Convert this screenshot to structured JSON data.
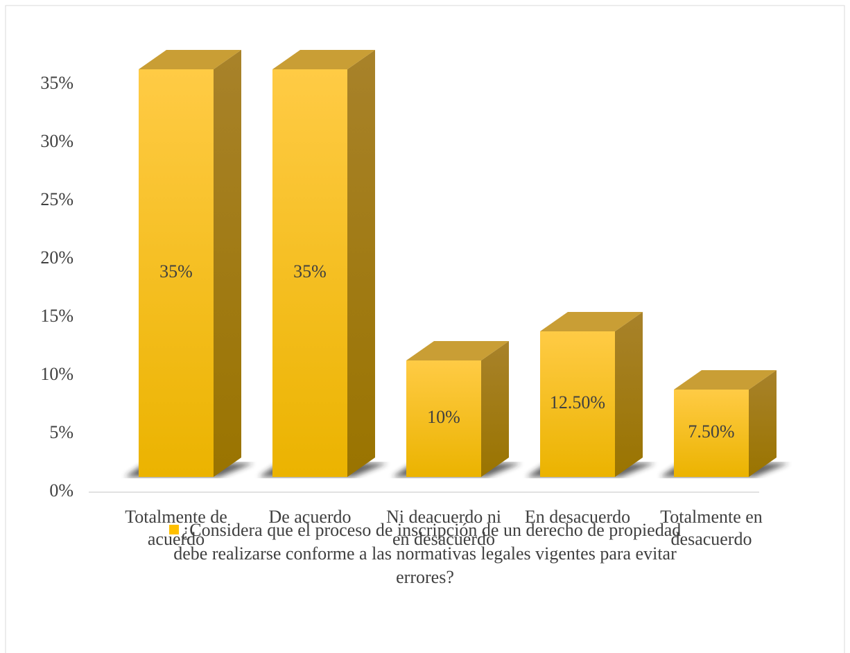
{
  "chart_data": {
    "type": "bar3d",
    "categories": [
      "Totalmente de acuerdo",
      "De acuerdo",
      "Ni deacuerdo ni en desacuerdo",
      "En desacuerdo",
      "Totalmente en desacuerdo"
    ],
    "series": [
      {
        "name": "¿Considera que el proceso de inscripción de un derecho de propiedad debe realizarse conforme a las normativas legales vigentes para evitar errores?",
        "color": "#ffc000",
        "values": [
          35,
          35,
          10,
          12.5,
          7.5
        ],
        "value_labels": [
          "35%",
          "35%",
          "10%",
          "12.50%",
          "7.50%"
        ]
      }
    ],
    "ylim": [
      0,
      35
    ],
    "yticks": [
      {
        "value": 0,
        "label": "0%"
      },
      {
        "value": 5,
        "label": "5%"
      },
      {
        "value": 10,
        "label": "10%"
      },
      {
        "value": 15,
        "label": "15%"
      },
      {
        "value": 20,
        "label": "20%"
      },
      {
        "value": 25,
        "label": "25%"
      },
      {
        "value": 30,
        "label": "30%"
      },
      {
        "value": 35,
        "label": "35%"
      }
    ],
    "legend": "bottom"
  }
}
